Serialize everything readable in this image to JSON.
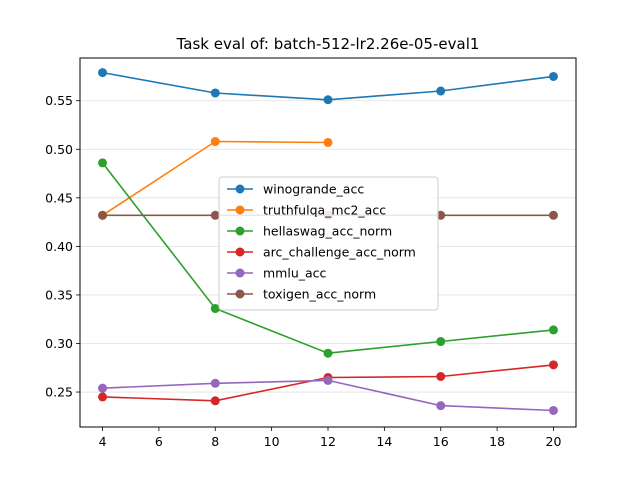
{
  "chart_data": {
    "type": "line",
    "title": "Task eval of: batch-512-lr2.26e-05-eval1",
    "xlabel": "",
    "ylabel": "",
    "xlim": [
      3.2,
      20.8
    ],
    "ylim": [
      0.214,
      0.594
    ],
    "xticks": [
      4,
      6,
      8,
      10,
      12,
      14,
      16,
      18,
      20
    ],
    "yticks": [
      0.25,
      0.3,
      0.35,
      0.4,
      0.45,
      0.5,
      0.55
    ],
    "ytick_labels": [
      "0.25",
      "0.30",
      "0.35",
      "0.40",
      "0.45",
      "0.50",
      "0.55"
    ],
    "grid": "horizontal",
    "legend_position": "center",
    "series": [
      {
        "name": "winogrande_acc",
        "color": "#1f77b4",
        "x": [
          4,
          8,
          12,
          16,
          20
        ],
        "y": [
          0.579,
          0.558,
          0.551,
          0.56,
          0.575
        ]
      },
      {
        "name": "truthfulqa_mc2_acc",
        "color": "#ff7f0e",
        "x": [
          4,
          8,
          12
        ],
        "y": [
          0.432,
          0.508,
          0.507
        ]
      },
      {
        "name": "hellaswag_acc_norm",
        "color": "#2ca02c",
        "x": [
          4,
          8,
          12,
          16,
          20
        ],
        "y": [
          0.486,
          0.336,
          0.29,
          0.302,
          0.314
        ]
      },
      {
        "name": "arc_challenge_acc_norm",
        "color": "#d62728",
        "x": [
          4,
          8,
          12,
          16,
          20
        ],
        "y": [
          0.245,
          0.241,
          0.265,
          0.266,
          0.278
        ]
      },
      {
        "name": "mmlu_acc",
        "color": "#9467bd",
        "x": [
          4,
          8,
          12,
          16,
          20
        ],
        "y": [
          0.254,
          0.259,
          0.262,
          0.236,
          0.231
        ]
      },
      {
        "name": "toxigen_acc_norm",
        "color": "#8c564b",
        "x": [
          4,
          8,
          12,
          16,
          20
        ],
        "y": [
          0.432,
          0.432,
          0.432,
          0.432,
          0.432
        ]
      }
    ]
  }
}
